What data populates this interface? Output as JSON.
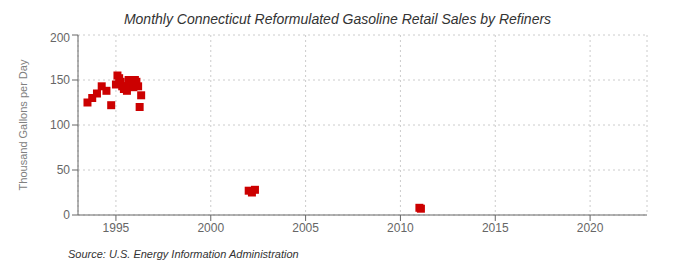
{
  "chart_data": {
    "type": "scatter",
    "title": "Monthly Connecticut Reformulated Gasoline Retail Sales by Refiners",
    "ylabel": "Thousand Gallons per Day",
    "source": "Source: U.S. Energy Information Administration",
    "color": "#cc0000",
    "marker": "square",
    "xlim": [
      1993,
      2023
    ],
    "ylim": [
      0,
      200
    ],
    "xticks": [
      1995,
      2000,
      2005,
      2010,
      2015,
      2020
    ],
    "yticks": [
      0,
      50,
      100,
      150,
      200
    ],
    "grid": true,
    "x": [
      1993.5,
      1993.75,
      1994.0,
      1994.25,
      1994.5,
      1994.75,
      1995.0,
      1995.08,
      1995.17,
      1995.25,
      1995.33,
      1995.42,
      1995.5,
      1995.58,
      1995.67,
      1995.75,
      1995.83,
      1995.92,
      1996.0,
      1996.08,
      1996.17,
      1996.25,
      1996.33,
      2002.0,
      2002.17,
      2002.33,
      2011.0,
      2011.08
    ],
    "values": [
      125,
      130,
      135,
      143,
      138,
      122,
      145,
      155,
      152,
      148,
      143,
      140,
      143,
      138,
      150,
      148,
      145,
      142,
      150,
      148,
      143,
      120,
      133,
      27,
      25,
      28,
      8,
      7
    ]
  }
}
